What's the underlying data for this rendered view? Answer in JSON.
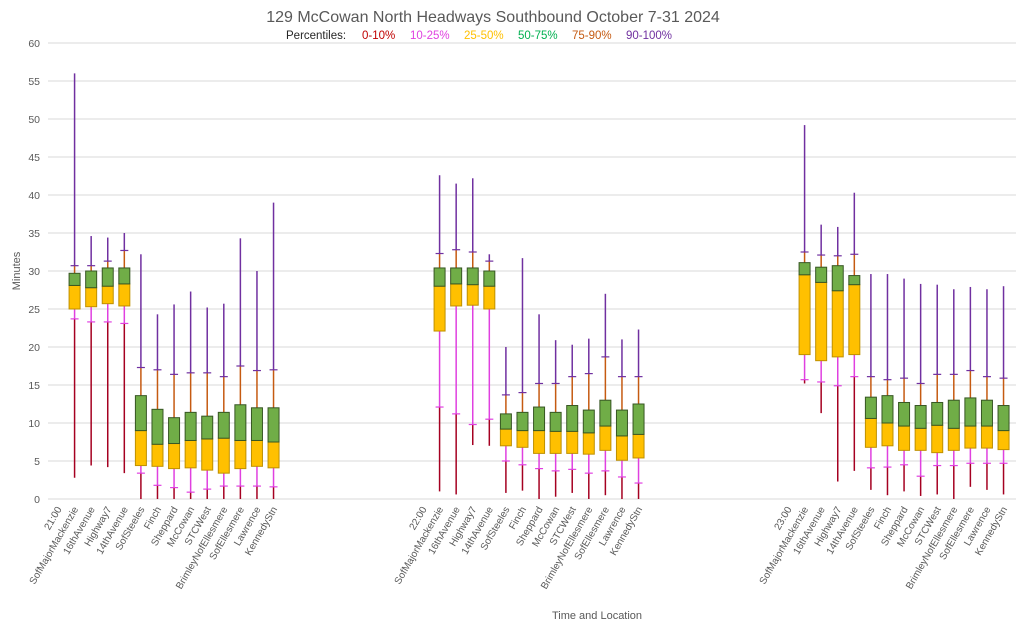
{
  "chart_data": {
    "type": "boxplot",
    "title": "129 McCowan North Headways Southbound October 7-31 2024",
    "legend": {
      "label": "Percentiles:",
      "position": "top-center",
      "items": [
        {
          "text": "0-10%",
          "color": "#C00000"
        },
        {
          "text": "10-25%",
          "color": "#E040E0"
        },
        {
          "text": "25-50%",
          "color": "#FFC000"
        },
        {
          "text": "50-75%",
          "color": "#00B050"
        },
        {
          "text": "75-90%",
          "color": "#C55A11"
        },
        {
          "text": "90-100%",
          "color": "#7030A0"
        }
      ]
    },
    "colors": {
      "p0_10": "#A50021",
      "p10_25": "#E040E0",
      "p25_50_fill": "#FFC000",
      "p25_50_edge": "#BF9000",
      "p50_75_fill": "#70AD47",
      "p50_75_edge": "#375623",
      "p75_90": "#C55A11",
      "p90_100": "#7030A0",
      "grid": "#D9D9D9",
      "text": "#595959"
    },
    "xlabel": "Time and Location",
    "ylabel": "Minutes",
    "ylim": [
      0,
      60
    ],
    "yticks": [
      0,
      5,
      10,
      15,
      20,
      25,
      30,
      35,
      40,
      45,
      50,
      55,
      60
    ],
    "grid": true,
    "stat_keys": [
      "min",
      "p10",
      "p25",
      "p50",
      "p75",
      "p90",
      "max"
    ],
    "groups": [
      {
        "time": "21:00",
        "stops": [
          {
            "name": "SofMajorMackenzie",
            "min": 2.8,
            "p10": 23.7,
            "p25": 25.0,
            "p50": 28.1,
            "p75": 29.7,
            "p90": 30.7,
            "max": 56.0
          },
          {
            "name": "16thAvenue",
            "min": 4.4,
            "p10": 23.3,
            "p25": 25.3,
            "p50": 27.8,
            "p75": 30.0,
            "p90": 30.7,
            "max": 34.6
          },
          {
            "name": "Highway7",
            "min": 4.2,
            "p10": 23.3,
            "p25": 25.7,
            "p50": 28.0,
            "p75": 30.4,
            "p90": 31.3,
            "max": 34.4
          },
          {
            "name": "14thAvenue",
            "min": 3.4,
            "p10": 23.1,
            "p25": 25.4,
            "p50": 28.3,
            "p75": 30.4,
            "p90": 32.7,
            "max": 35.0
          },
          {
            "name": "SofSteeles",
            "min": 0.0,
            "p10": 3.4,
            "p25": 4.4,
            "p50": 9.0,
            "p75": 13.6,
            "p90": 17.3,
            "max": 32.2
          },
          {
            "name": "Finch",
            "min": 0.0,
            "p10": 1.8,
            "p25": 4.3,
            "p50": 7.2,
            "p75": 11.8,
            "p90": 17.0,
            "max": 24.3
          },
          {
            "name": "Sheppard",
            "min": 0.0,
            "p10": 1.5,
            "p25": 4.0,
            "p50": 7.3,
            "p75": 10.7,
            "p90": 16.4,
            "max": 25.6
          },
          {
            "name": "McCowan",
            "min": 0.0,
            "p10": 0.9,
            "p25": 4.1,
            "p50": 7.7,
            "p75": 11.4,
            "p90": 16.6,
            "max": 27.3
          },
          {
            "name": "STCWest",
            "min": 0.0,
            "p10": 1.3,
            "p25": 3.8,
            "p50": 7.9,
            "p75": 10.9,
            "p90": 16.6,
            "max": 25.2
          },
          {
            "name": "BrimleyNofEllesmere",
            "min": 0.0,
            "p10": 1.7,
            "p25": 3.4,
            "p50": 8.0,
            "p75": 11.4,
            "p90": 16.1,
            "max": 25.7
          },
          {
            "name": "SofEllesmere",
            "min": 0.0,
            "p10": 1.7,
            "p25": 4.0,
            "p50": 7.7,
            "p75": 12.4,
            "p90": 17.5,
            "max": 34.3
          },
          {
            "name": "Lawrence",
            "min": 0.0,
            "p10": 1.7,
            "p25": 4.3,
            "p50": 7.7,
            "p75": 12.0,
            "p90": 16.9,
            "max": 30.0
          },
          {
            "name": "KennedyStn",
            "min": 0.0,
            "p10": 1.6,
            "p25": 4.1,
            "p50": 7.5,
            "p75": 12.0,
            "p90": 17.0,
            "max": 39.0
          }
        ]
      },
      {
        "time": "22:00",
        "stops": [
          {
            "name": "SofMajorMackenzie",
            "min": 1.0,
            "p10": 12.1,
            "p25": 22.1,
            "p50": 28.0,
            "p75": 30.4,
            "p90": 32.3,
            "max": 42.6
          },
          {
            "name": "16thAvenue",
            "min": 0.6,
            "p10": 11.2,
            "p25": 25.4,
            "p50": 28.3,
            "p75": 30.4,
            "p90": 32.8,
            "max": 41.5
          },
          {
            "name": "Highway7",
            "min": 7.1,
            "p10": 9.8,
            "p25": 25.5,
            "p50": 28.2,
            "p75": 30.4,
            "p90": 32.5,
            "max": 42.2
          },
          {
            "name": "14thAvenue",
            "min": 7.0,
            "p10": 10.5,
            "p25": 25.0,
            "p50": 28.0,
            "p75": 30.0,
            "p90": 31.3,
            "max": 32.2
          },
          {
            "name": "SofSteeles",
            "min": 0.8,
            "p10": 5.0,
            "p25": 7.0,
            "p50": 9.2,
            "p75": 11.2,
            "p90": 13.7,
            "max": 20.0
          },
          {
            "name": "Finch",
            "min": 1.1,
            "p10": 4.5,
            "p25": 6.8,
            "p50": 9.0,
            "p75": 11.4,
            "p90": 14.0,
            "max": 31.7
          },
          {
            "name": "Sheppard",
            "min": 0.0,
            "p10": 4.0,
            "p25": 6.0,
            "p50": 9.0,
            "p75": 12.1,
            "p90": 15.2,
            "max": 24.3
          },
          {
            "name": "McCowan",
            "min": 0.3,
            "p10": 3.7,
            "p25": 6.0,
            "p50": 8.9,
            "p75": 11.4,
            "p90": 15.2,
            "max": 20.9
          },
          {
            "name": "STCWest",
            "min": 0.8,
            "p10": 3.9,
            "p25": 6.0,
            "p50": 8.9,
            "p75": 12.3,
            "p90": 16.1,
            "max": 20.3
          },
          {
            "name": "BrimleyNofEllesmere",
            "min": 0.0,
            "p10": 3.4,
            "p25": 5.9,
            "p50": 8.7,
            "p75": 11.7,
            "p90": 16.5,
            "max": 21.1
          },
          {
            "name": "SofEllesmere",
            "min": 0.5,
            "p10": 3.7,
            "p25": 6.4,
            "p50": 9.6,
            "p75": 13.0,
            "p90": 18.7,
            "max": 27.0
          },
          {
            "name": "Lawrence",
            "min": 0.0,
            "p10": 2.9,
            "p25": 5.1,
            "p50": 8.3,
            "p75": 11.7,
            "p90": 16.1,
            "max": 21.0
          },
          {
            "name": "KennedyStn",
            "min": 0.0,
            "p10": 2.1,
            "p25": 5.4,
            "p50": 8.5,
            "p75": 12.5,
            "p90": 16.1,
            "max": 22.3
          }
        ]
      },
      {
        "time": "23:00",
        "stops": [
          {
            "name": "SofMajorMackenzie",
            "min": 15.2,
            "p10": 15.7,
            "p25": 19.0,
            "p50": 29.5,
            "p75": 31.1,
            "p90": 32.5,
            "max": 49.2
          },
          {
            "name": "16thAvenue",
            "min": 11.3,
            "p10": 15.4,
            "p25": 18.2,
            "p50": 28.5,
            "p75": 30.5,
            "p90": 32.1,
            "max": 36.1
          },
          {
            "name": "Highway7",
            "min": 2.3,
            "p10": 14.9,
            "p25": 18.7,
            "p50": 27.4,
            "p75": 30.7,
            "p90": 32.0,
            "max": 35.8
          },
          {
            "name": "14thAvenue",
            "min": 3.7,
            "p10": 16.1,
            "p25": 19.0,
            "p50": 28.2,
            "p75": 29.4,
            "p90": 32.2,
            "max": 40.3
          },
          {
            "name": "SofSteeles",
            "min": 1.2,
            "p10": 4.1,
            "p25": 6.8,
            "p50": 10.6,
            "p75": 13.4,
            "p90": 16.1,
            "max": 29.6
          },
          {
            "name": "Finch",
            "min": 0.5,
            "p10": 4.2,
            "p25": 7.0,
            "p50": 10.0,
            "p75": 13.6,
            "p90": 15.7,
            "max": 29.6
          },
          {
            "name": "Sheppard",
            "min": 1.0,
            "p10": 4.5,
            "p25": 6.4,
            "p50": 9.6,
            "p75": 12.7,
            "p90": 15.9,
            "max": 29.0
          },
          {
            "name": "McCowan",
            "min": 0.4,
            "p10": 3.0,
            "p25": 6.4,
            "p50": 9.3,
            "p75": 12.3,
            "p90": 15.2,
            "max": 28.3
          },
          {
            "name": "STCWest",
            "min": 0.6,
            "p10": 4.4,
            "p25": 6.1,
            "p50": 9.7,
            "p75": 12.7,
            "p90": 16.4,
            "max": 28.2
          },
          {
            "name": "BrimleyNofEllesmere",
            "min": 0.0,
            "p10": 4.4,
            "p25": 6.4,
            "p50": 9.3,
            "p75": 13.0,
            "p90": 16.4,
            "max": 27.6
          },
          {
            "name": "SofEllesmere",
            "min": 1.6,
            "p10": 4.7,
            "p25": 6.7,
            "p50": 9.6,
            "p75": 13.3,
            "p90": 16.9,
            "max": 27.9
          },
          {
            "name": "Lawrence",
            "min": 1.2,
            "p10": 4.7,
            "p25": 6.7,
            "p50": 9.6,
            "p75": 13.0,
            "p90": 16.1,
            "max": 27.6
          },
          {
            "name": "KennedyStn",
            "min": 0.6,
            "p10": 4.7,
            "p25": 6.5,
            "p50": 9.0,
            "p75": 12.3,
            "p90": 15.9,
            "max": 28.0
          }
        ]
      }
    ]
  }
}
